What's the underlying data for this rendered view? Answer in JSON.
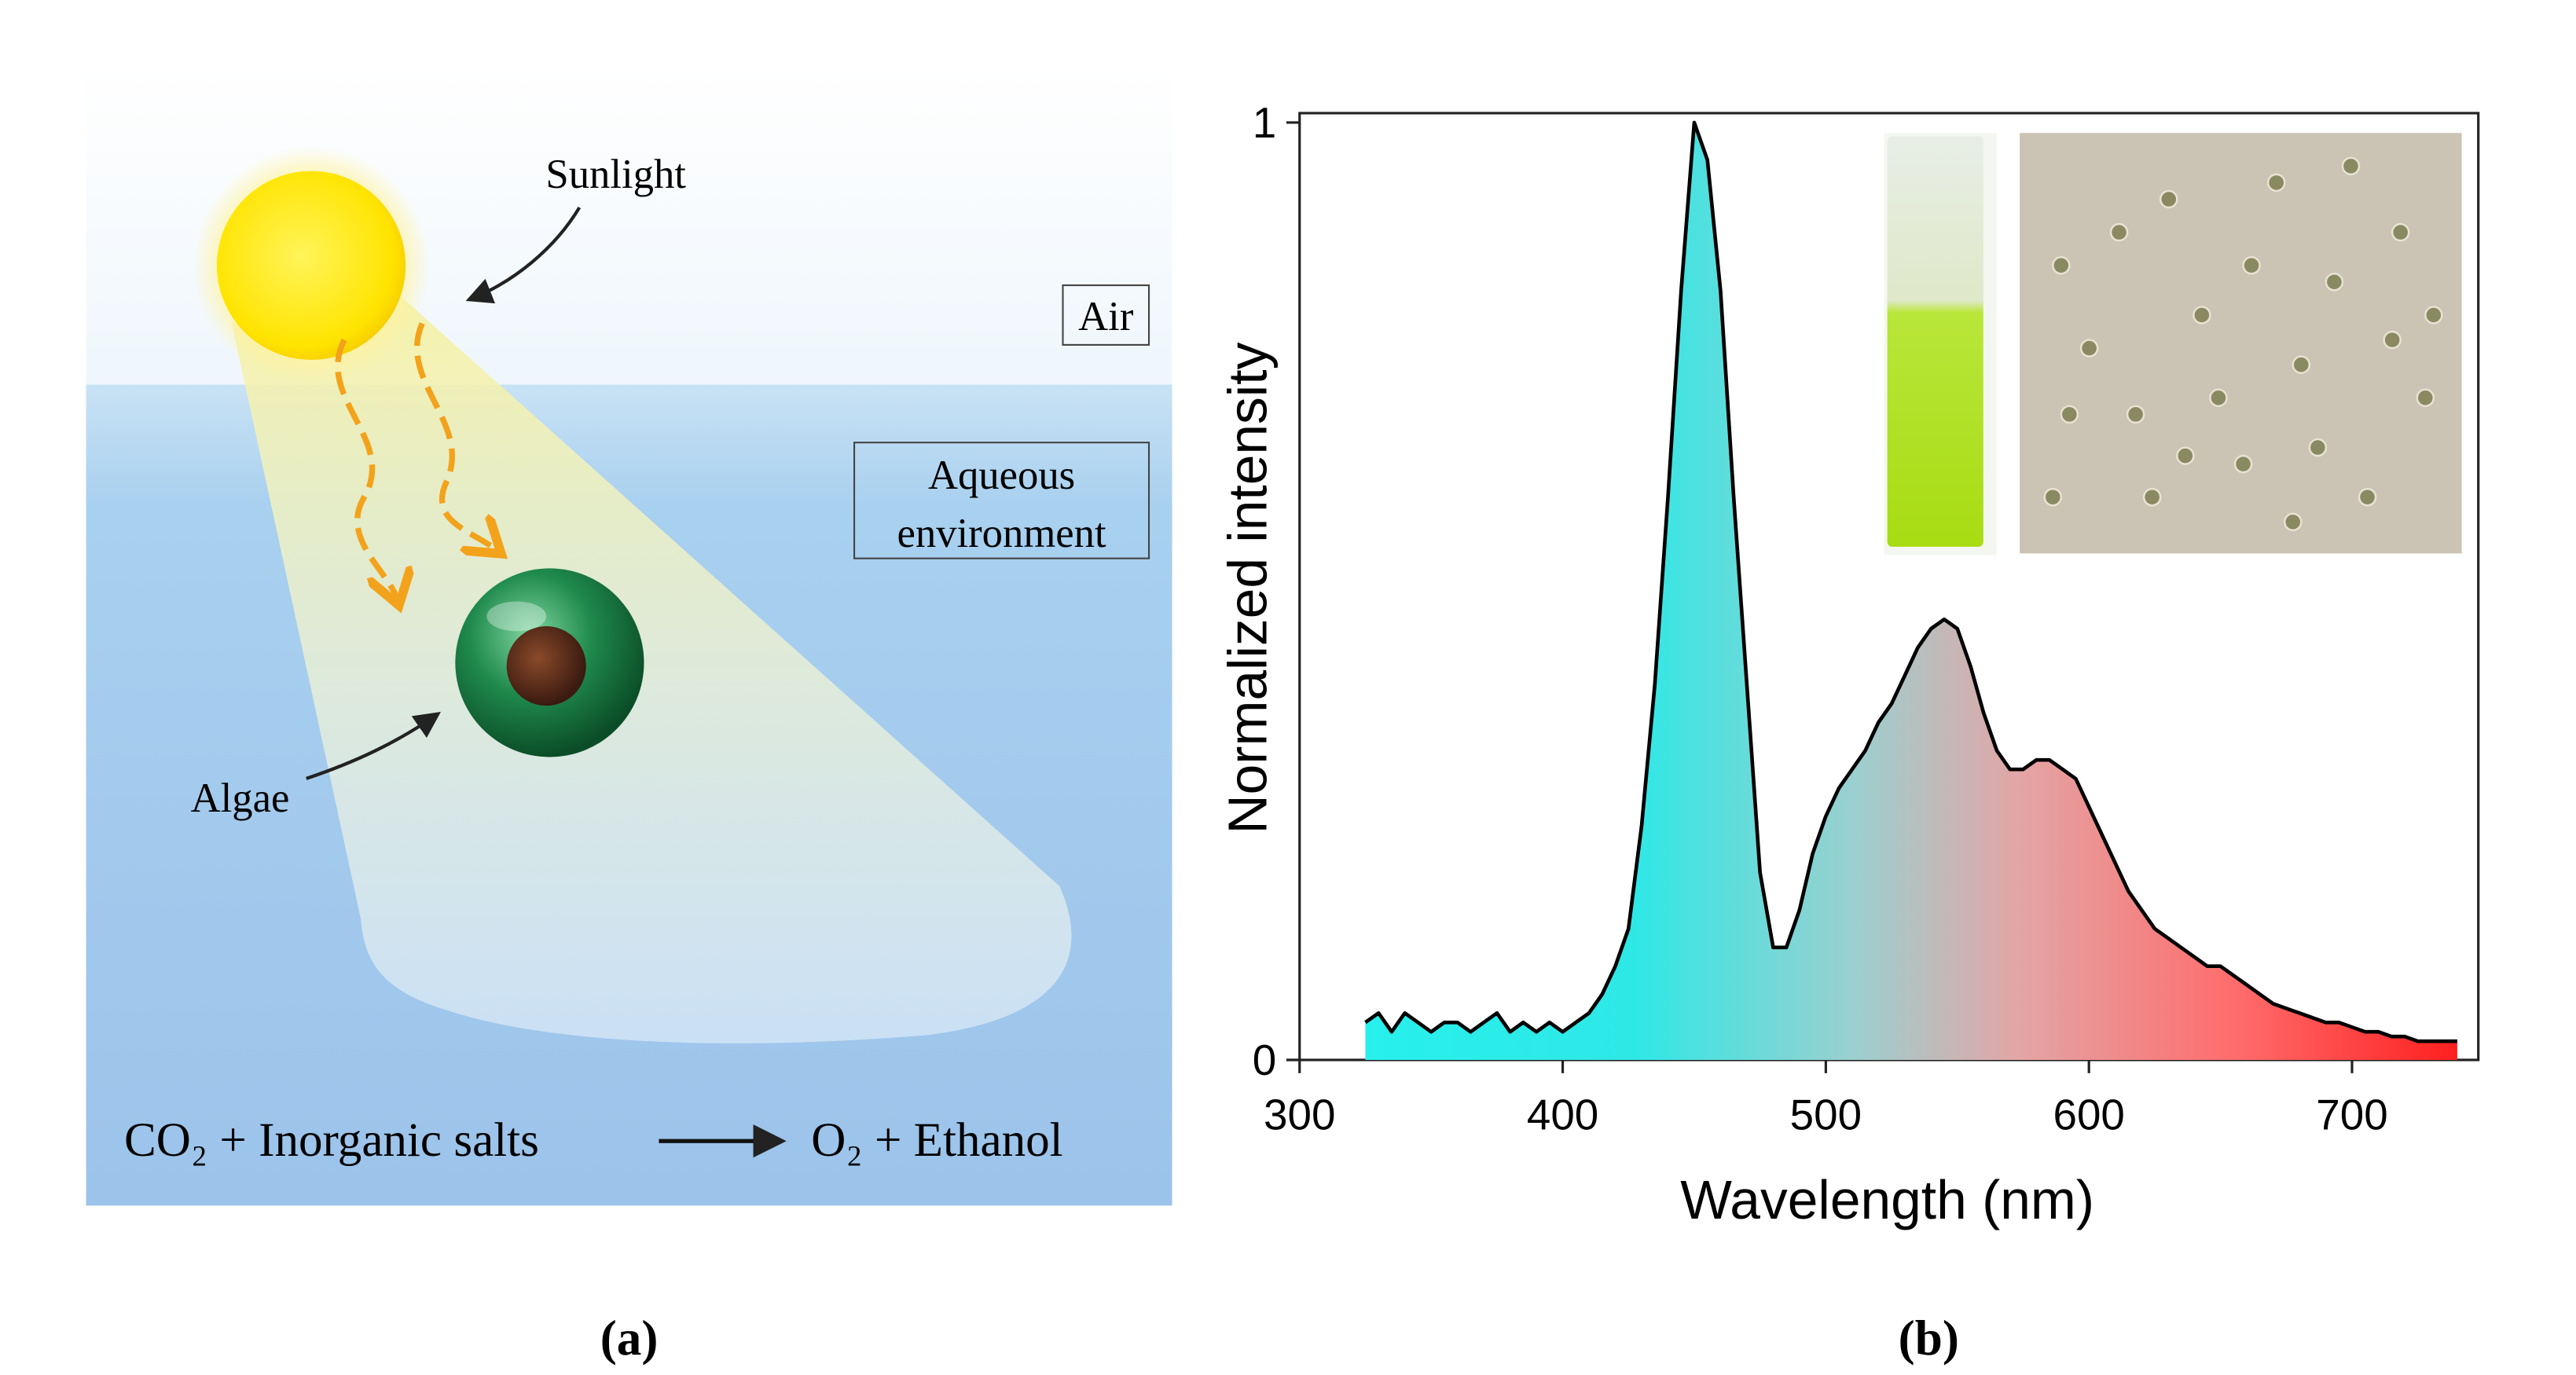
{
  "panel_a": {
    "sunlight": "Sunlight",
    "air": "Air",
    "aqueous": [
      "Aqueous",
      "environment"
    ],
    "algae": "Algae",
    "reactants": "CO₂ + Inorganic salts",
    "products": "O₂ + Ethanol",
    "label": "(a)"
  },
  "panel_b": {
    "label": "(b)"
  },
  "chart_data": {
    "type": "area",
    "x_label": "Wavelength (nm)",
    "y_label": "Normalized intensity",
    "x": [
      325,
      330,
      335,
      340,
      345,
      350,
      355,
      360,
      365,
      370,
      375,
      380,
      385,
      390,
      395,
      400,
      405,
      410,
      415,
      420,
      425,
      430,
      435,
      440,
      445,
      450,
      455,
      460,
      465,
      470,
      475,
      480,
      485,
      490,
      495,
      500,
      505,
      510,
      515,
      520,
      525,
      530,
      535,
      540,
      545,
      550,
      555,
      560,
      565,
      570,
      575,
      580,
      585,
      590,
      595,
      600,
      605,
      610,
      615,
      620,
      625,
      630,
      635,
      640,
      645,
      650,
      655,
      660,
      665,
      670,
      675,
      680,
      685,
      690,
      695,
      700,
      705,
      710,
      715,
      720,
      725,
      730,
      735,
      740
    ],
    "values": [
      0.04,
      0.05,
      0.03,
      0.05,
      0.04,
      0.03,
      0.04,
      0.04,
      0.03,
      0.04,
      0.05,
      0.03,
      0.04,
      0.03,
      0.04,
      0.03,
      0.04,
      0.05,
      0.07,
      0.1,
      0.14,
      0.25,
      0.4,
      0.6,
      0.82,
      1,
      0.96,
      0.82,
      0.6,
      0.4,
      0.2,
      0.12,
      0.12,
      0.16,
      0.22,
      0.26,
      0.29,
      0.31,
      0.33,
      0.36,
      0.38,
      0.41,
      0.44,
      0.46,
      0.47,
      0.46,
      0.42,
      0.37,
      0.33,
      0.31,
      0.31,
      0.32,
      0.32,
      0.31,
      0.3,
      0.27,
      0.24,
      0.21,
      0.18,
      0.16,
      0.14,
      0.13,
      0.12,
      0.11,
      0.1,
      0.1,
      0.09,
      0.08,
      0.07,
      0.06,
      0.055,
      0.05,
      0.045,
      0.04,
      0.04,
      0.035,
      0.03,
      0.03,
      0.025,
      0.025,
      0.02,
      0.02,
      0.02,
      0.02
    ],
    "color": "#000000",
    "xlim": [
      300,
      748
    ],
    "ylim": [
      0,
      1.01
    ],
    "xticks": [
      300,
      400,
      500,
      600,
      700
    ],
    "yticks": [
      0,
      1
    ]
  }
}
